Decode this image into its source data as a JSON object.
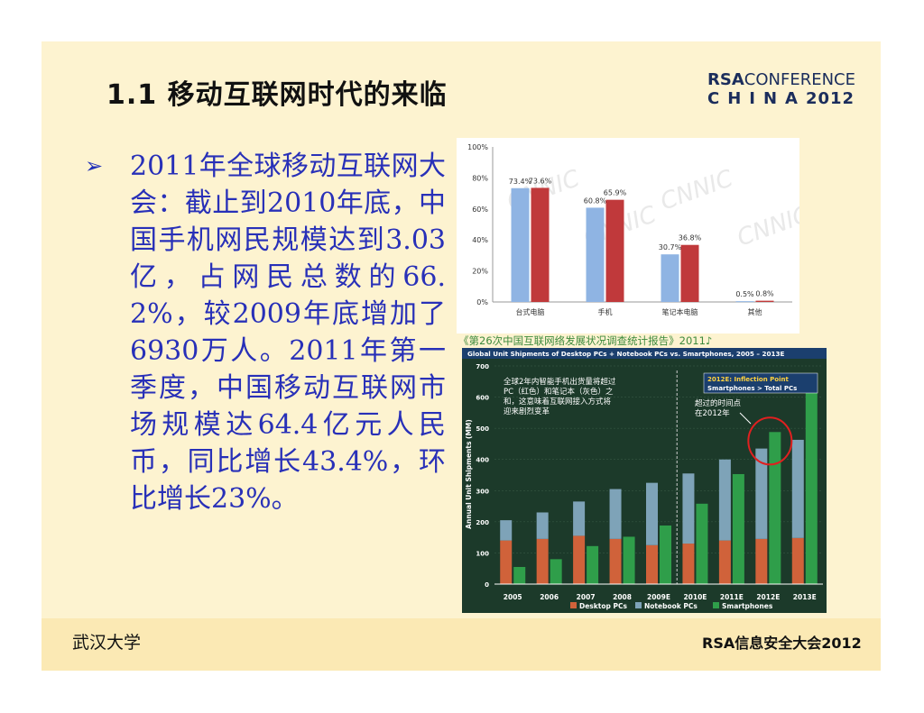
{
  "slide": {
    "title": "1.1 移动互联网时代的来临",
    "logo": {
      "line1_bold": "RSA",
      "line1_rest": "CONFERENCE",
      "line2": "CHINA",
      "year": "2012"
    },
    "bullet_icon": "arrow-bullet-icon",
    "bullet_text": "2011年全球移动互联网大会：截止到2010年底，中国手机网民规模达到3.03亿，占网民总数的66.2%，较2009年底增加了6930万人。2011年第一季度，中国移动互联网市场规模达64.4亿元人民币，同比增长43.4%，环比增长23%。",
    "chart1_caption": "《第26次中国互联网络发展状况调查统计报告》2011♪",
    "footer_left": "武汉大学",
    "footer_right": "RSA信息安全大会2012"
  },
  "chart_data": [
    {
      "type": "bar",
      "categories": [
        "台式电脑",
        "手机",
        "笔记本电脑",
        "其他"
      ],
      "series": [
        {
          "values": [
            73.4,
            60.8,
            30.7,
            0.5
          ]
        },
        {
          "values": [
            73.6,
            65.9,
            36.8,
            0.8
          ]
        }
      ],
      "value_labels": [
        [
          "73.4%",
          "60.8%",
          "30.7%",
          "0.5%"
        ],
        [
          "73.6%",
          "65.9%",
          "36.8%",
          "0.8%"
        ]
      ],
      "yticks": [
        "100%",
        "80%",
        "60%",
        "40%",
        "20%",
        "0%"
      ],
      "ylim": [
        0,
        100
      ],
      "colors": [
        "#8fb4e3",
        "#c0393b"
      ],
      "watermark": "CNNIC"
    },
    {
      "type": "bar",
      "title": "Global Unit Shipments of Desktop PCs + Notebook PCs vs. Smartphones, 2005 – 2013E",
      "ylabel": "Annual Unit Shipments (MM)",
      "categories": [
        "2005",
        "2006",
        "2007",
        "2008",
        "2009E",
        "2010E",
        "2011E",
        "2012E",
        "2013E"
      ],
      "series": [
        {
          "name": "Desktop PCs",
          "values": [
            140,
            145,
            155,
            145,
            125,
            130,
            140,
            145,
            148
          ]
        },
        {
          "name": "Notebook PCs",
          "values": [
            65,
            85,
            110,
            160,
            200,
            225,
            260,
            290,
            315
          ]
        },
        {
          "name": "Smartphones",
          "values": [
            55,
            80,
            122,
            152,
            188,
            258,
            353,
            488,
            655
          ]
        }
      ],
      "legend": [
        "Desktop PCs",
        "Notebook PCs",
        "Smartphones"
      ],
      "yticks": [
        "700",
        "600",
        "500",
        "400",
        "300",
        "200",
        "100",
        "0"
      ],
      "ylim": [
        0,
        700
      ],
      "colors": [
        "#d0623a",
        "#7ea3b8",
        "#2f9e4a"
      ],
      "note_lines": [
        "全球2年内智能手机出货量将超过",
        "PC（红色）和笔记本（灰色）之",
        "和，这意味着互联网接入方式将",
        "迎来剧烈变革"
      ],
      "inflection_lines": [
        "2012E: Inflection Point",
        "Smartphones > Total PCs"
      ],
      "callout_lines": [
        "超过的时间点",
        "在2012年"
      ]
    }
  ]
}
